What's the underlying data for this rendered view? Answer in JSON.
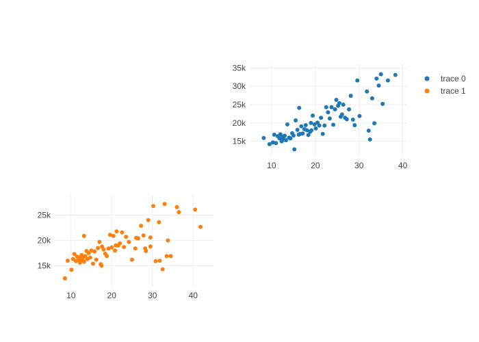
{
  "chart_data": [
    {
      "type": "scatter",
      "name": "trace 0",
      "color": "#1f77b4",
      "xlim": [
        5,
        41
      ],
      "ylim": [
        11000,
        36000
      ],
      "xticks": [
        10,
        20,
        30,
        40
      ],
      "xtick_labels": [
        "10",
        "20",
        "30",
        "40"
      ],
      "yticks": [
        15000,
        20000,
        25000,
        30000,
        35000
      ],
      "ytick_labels": [
        "15k",
        "20k",
        "25k",
        "30k",
        "35k"
      ],
      "grid": true,
      "x": [
        8.2,
        9.5,
        10.3,
        10.6,
        11.0,
        11.4,
        11.8,
        12.0,
        12.3,
        12.5,
        12.8,
        13.0,
        13.3,
        13.6,
        14.0,
        14.3,
        14.7,
        15.0,
        15.2,
        15.5,
        15.9,
        16.2,
        16.5,
        16.8,
        17.1,
        17.5,
        17.8,
        18.1,
        18.4,
        18.8,
        19.1,
        19.4,
        19.8,
        20.1,
        20.5,
        20.9,
        21.3,
        21.7,
        22.1,
        22.5,
        22.9,
        23.3,
        23.7,
        24.1,
        24.5,
        24.8,
        25.2,
        25.5,
        25.8,
        26.1,
        26.4,
        26.8,
        27.2,
        27.7,
        28.1,
        28.6,
        29.0,
        29.6,
        30.1,
        31.8,
        32.2,
        32.5,
        33.0,
        33.5,
        34.0,
        34.5,
        35.0,
        35.4,
        36.6,
        38.3,
        16.3,
        19.0,
        12.5
      ],
      "y": [
        15900,
        14200,
        14700,
        16800,
        14500,
        16400,
        15800,
        16900,
        15000,
        16000,
        15500,
        16500,
        15300,
        19600,
        16000,
        15800,
        17200,
        16600,
        12800,
        20700,
        18100,
        16800,
        17000,
        19100,
        17100,
        18300,
        19400,
        18000,
        16700,
        17600,
        18000,
        22000,
        19600,
        18500,
        20100,
        19300,
        21400,
        17000,
        19300,
        24300,
        22900,
        21200,
        24300,
        19500,
        23700,
        26300,
        24700,
        25400,
        21700,
        22300,
        25000,
        21400,
        21000,
        23700,
        27400,
        20900,
        19400,
        31600,
        21900,
        28600,
        17900,
        15500,
        26700,
        19900,
        32100,
        30200,
        33300,
        25200,
        31600,
        33100,
        24100,
        20000,
        16300
      ]
    },
    {
      "type": "scatter",
      "name": "trace 1",
      "color": "#ff7f0e",
      "xlim": [
        6,
        45
      ],
      "ylim": [
        11000,
        29000
      ],
      "xticks": [
        10,
        20,
        30,
        40
      ],
      "xtick_labels": [
        "10",
        "20",
        "30",
        "40"
      ],
      "yticks": [
        15000,
        20000,
        25000
      ],
      "ytick_labels": [
        "15k",
        "20k",
        "25k"
      ],
      "grid": true,
      "x": [
        8.5,
        9.2,
        10.1,
        10.5,
        10.8,
        11.2,
        11.5,
        11.8,
        12.0,
        12.2,
        12.4,
        12.6,
        12.8,
        13.0,
        13.2,
        13.5,
        13.8,
        14.0,
        14.3,
        14.7,
        15.0,
        15.4,
        15.8,
        16.2,
        16.6,
        17.0,
        17.3,
        17.6,
        18.0,
        18.4,
        18.8,
        19.2,
        19.6,
        20.0,
        20.4,
        20.8,
        21.2,
        21.6,
        22.0,
        22.5,
        23.0,
        23.5,
        24.2,
        25.0,
        25.8,
        26.5,
        27.2,
        27.8,
        28.4,
        29.0,
        29.5,
        30.2,
        30.8,
        31.6,
        32.5,
        33.0,
        33.8,
        34.5,
        36.0,
        36.5,
        40.5,
        41.8,
        13.2,
        17.5,
        21.0,
        26.0,
        29.5,
        33.5,
        28.2,
        31.8
      ],
      "y": [
        12500,
        16000,
        14200,
        16300,
        17300,
        15900,
        16800,
        16200,
        16500,
        15600,
        16800,
        17100,
        16100,
        16700,
        15800,
        16900,
        17900,
        16300,
        17500,
        16600,
        18000,
        15400,
        17800,
        16200,
        18500,
        19700,
        15300,
        18800,
        18200,
        17400,
        16900,
        18400,
        21100,
        18600,
        20900,
        18000,
        21800,
        19000,
        19400,
        21600,
        18700,
        20700,
        19700,
        16200,
        18400,
        20400,
        22900,
        21000,
        17900,
        24000,
        20600,
        26800,
        15900,
        23600,
        14300,
        27200,
        20000,
        16900,
        26600,
        25600,
        26100,
        22700,
        20900,
        15000,
        19000,
        20500,
        18800,
        16900,
        18400,
        16000
      ]
    }
  ]
}
